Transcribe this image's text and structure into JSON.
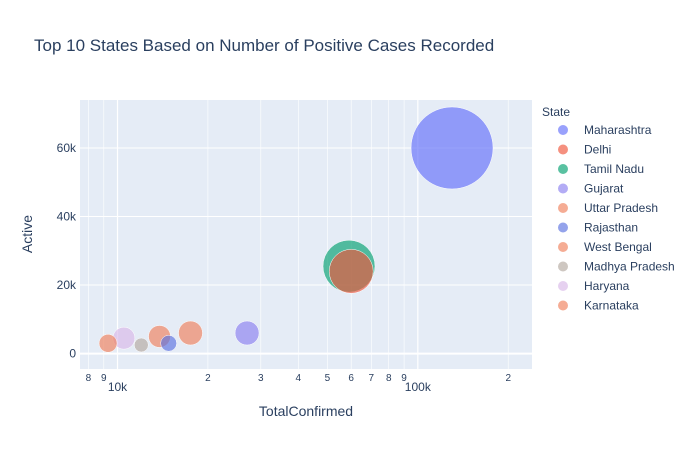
{
  "chart_data": {
    "type": "scatter",
    "title": "Top 10 States Based on Number of Positive Cases Recorded",
    "xlabel": "TotalConfirmed",
    "ylabel": "Active",
    "x_scale": "log",
    "xlim": [
      7500,
      240000
    ],
    "ylim": [
      -4500,
      74000
    ],
    "legend_title": "State",
    "legend_position": "right",
    "grid": true,
    "plot_bg": "#e5ecf6",
    "x_major_ticks": [
      {
        "v": 10000,
        "label": "10k"
      },
      {
        "v": 100000,
        "label": "100k"
      }
    ],
    "x_minor_ticks": [
      {
        "v": 8000,
        "label": "8"
      },
      {
        "v": 9000,
        "label": "9"
      },
      {
        "v": 20000,
        "label": "2"
      },
      {
        "v": 30000,
        "label": "3"
      },
      {
        "v": 40000,
        "label": "4"
      },
      {
        "v": 50000,
        "label": "5"
      },
      {
        "v": 60000,
        "label": "6"
      },
      {
        "v": 70000,
        "label": "7"
      },
      {
        "v": 80000,
        "label": "8"
      },
      {
        "v": 90000,
        "label": "9"
      },
      {
        "v": 200000,
        "label": "2"
      }
    ],
    "y_ticks": [
      {
        "v": 0,
        "label": "0"
      },
      {
        "v": 20000,
        "label": "20k"
      },
      {
        "v": 40000,
        "label": "40k"
      },
      {
        "v": 60000,
        "label": "60k"
      }
    ],
    "series": [
      {
        "name": "Maharashtra",
        "color": "#636efa",
        "x": 130000,
        "y": 60000,
        "size": 41
      },
      {
        "name": "Delhi",
        "color": "#ef553b",
        "x": 60000,
        "y": 24000,
        "size": 22
      },
      {
        "name": "Tamil Nadu",
        "color": "#00a06e",
        "x": 59000,
        "y": 25500,
        "size": 26
      },
      {
        "name": "Gujarat",
        "color": "#8a7ff0",
        "x": 27000,
        "y": 6000,
        "size": 12
      },
      {
        "name": "Uttar Pradesh",
        "color": "#f0805a",
        "x": 17500,
        "y": 6000,
        "size": 12
      },
      {
        "name": "Rajasthan",
        "color": "#5a72e0",
        "x": 14800,
        "y": 3000,
        "size": 8
      },
      {
        "name": "West Bengal",
        "color": "#f0805a",
        "x": 13800,
        "y": 5000,
        "size": 11
      },
      {
        "name": "Madhya Pradesh",
        "color": "#b4a9a0",
        "x": 12000,
        "y": 2500,
        "size": 7
      },
      {
        "name": "Haryana",
        "color": "#d8b8e8",
        "x": 10500,
        "y": 4500,
        "size": 11
      },
      {
        "name": "Karnataka",
        "color": "#f0805a",
        "x": 9300,
        "y": 3000,
        "size": 9
      }
    ]
  }
}
